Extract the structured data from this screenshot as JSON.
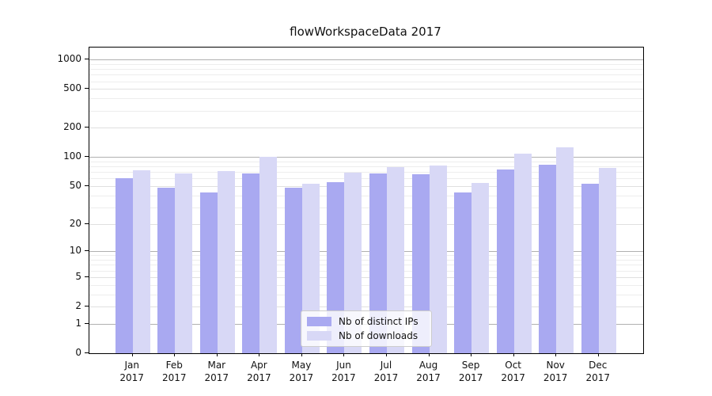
{
  "chart_data": {
    "type": "bar",
    "title": "flowWorkspaceData 2017",
    "y_scale": "log10(value+1)",
    "categories": [
      "Jan",
      "Feb",
      "Mar",
      "Apr",
      "May",
      "Jun",
      "Jul",
      "Aug",
      "Sep",
      "Oct",
      "Nov",
      "Dec"
    ],
    "year_label": "2017",
    "series": [
      {
        "name": "Nb of distinct IPs",
        "color": "#a9a9f1",
        "values": [
          60,
          48,
          43,
          68,
          48,
          55,
          68,
          67,
          43,
          74,
          83,
          53
        ]
      },
      {
        "name": "Nb of downloads",
        "color": "#d8d8f6",
        "values": [
          73,
          68,
          71,
          100,
          53,
          69,
          78,
          81,
          54,
          108,
          127,
          77
        ]
      }
    ],
    "y_ticks": [
      0,
      1,
      2,
      5,
      10,
      20,
      50,
      100,
      200,
      500,
      1000
    ],
    "ylim": [
      0,
      1330
    ],
    "grid": true,
    "legend_position": "lower center",
    "colors": {
      "decade_gridline": "#b0b0b0",
      "tick_gridline": "#e0e0e0",
      "minor_gridline": "#ededed",
      "spine": "#000000",
      "text": "#111111"
    }
  }
}
